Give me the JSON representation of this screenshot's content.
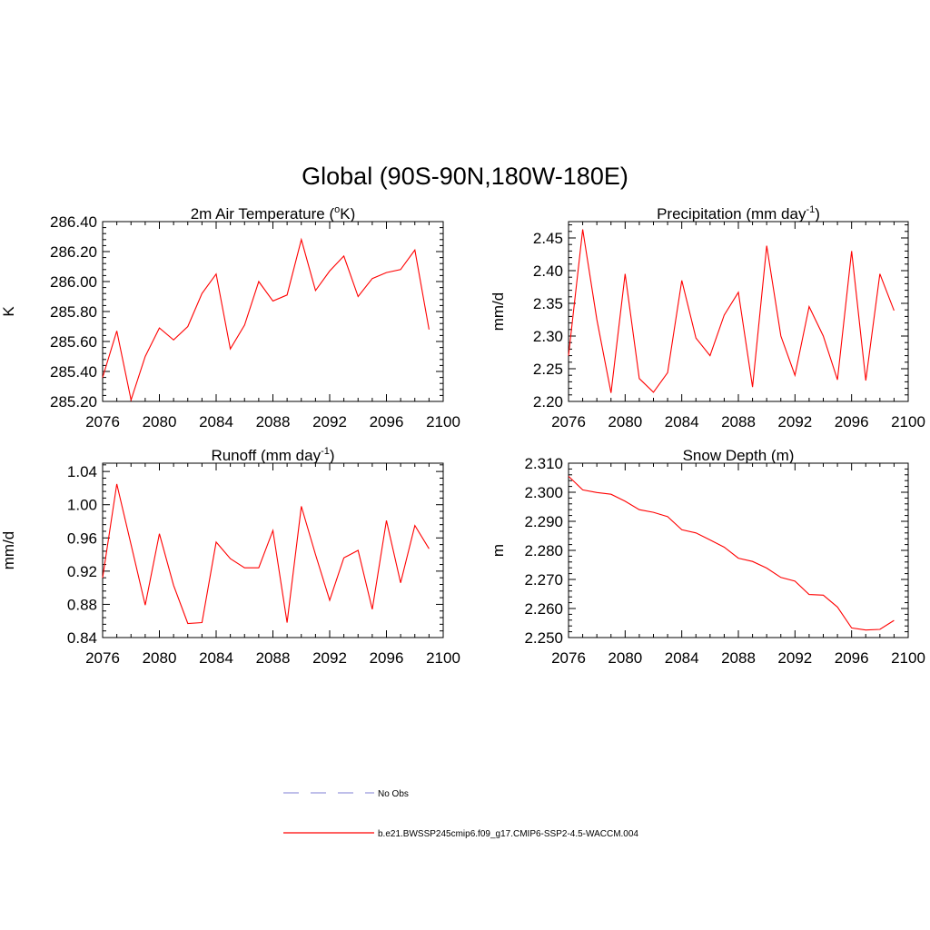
{
  "figure": {
    "title": "Global (90S-90N,180W-180E)"
  },
  "legend": {
    "items": [
      {
        "label": "No Obs",
        "style": "dashed",
        "color": "#9999dd"
      },
      {
        "label": "b.e21.BWSSP245cmip6.f09_g17.CMIP6-SSP2-4.5-WACCM.004",
        "style": "solid",
        "color": "#ff0000"
      }
    ]
  },
  "chart_data": [
    {
      "type": "line",
      "title_main": "2m Air Temperature (",
      "title_sup": "o",
      "title_tail": "K)",
      "ylabel": "K",
      "xlim": [
        2076,
        2100
      ],
      "ylim": [
        285.2,
        286.4
      ],
      "xticks": [
        "2076",
        "2080",
        "2084",
        "2088",
        "2092",
        "2096",
        "2100"
      ],
      "yticks": [
        "285.20",
        "285.40",
        "285.60",
        "285.80",
        "286.00",
        "286.20",
        "286.40"
      ],
      "series": [
        {
          "name": "b.e21.BWSSP245cmip6.f09_g17.CMIP6-SSP2-4.5-WACCM.004",
          "color": "#ff0000",
          "x": [
            2076,
            2077,
            2078,
            2079,
            2080,
            2081,
            2082,
            2083,
            2084,
            2085,
            2086,
            2087,
            2088,
            2089,
            2090,
            2091,
            2092,
            2093,
            2094,
            2095,
            2096,
            2097,
            2098,
            2099
          ],
          "y": [
            285.36,
            285.67,
            285.21,
            285.5,
            285.69,
            285.61,
            285.7,
            285.92,
            286.05,
            285.55,
            285.71,
            286.0,
            285.87,
            285.91,
            286.28,
            285.94,
            286.07,
            286.17,
            285.9,
            286.02,
            286.06,
            286.08,
            286.21,
            285.68
          ]
        }
      ]
    },
    {
      "type": "line",
      "title_main": "Precipitation (mm day",
      "title_sup": "-1",
      "title_tail": ")",
      "ylabel": "mm/d",
      "xlim": [
        2076,
        2100
      ],
      "ylim": [
        2.2,
        2.475
      ],
      "xticks": [
        "2076",
        "2080",
        "2084",
        "2088",
        "2092",
        "2096",
        "2100"
      ],
      "yticks": [
        "2.20",
        "2.25",
        "2.30",
        "2.35",
        "2.40",
        "2.45"
      ],
      "series": [
        {
          "name": "b.e21.BWSSP245cmip6.f09_g17.CMIP6-SSP2-4.5-WACCM.004",
          "color": "#ff0000",
          "x": [
            2076,
            2077,
            2078,
            2079,
            2080,
            2081,
            2082,
            2083,
            2084,
            2085,
            2086,
            2087,
            2088,
            2089,
            2090,
            2091,
            2092,
            2093,
            2094,
            2095,
            2096,
            2097,
            2098,
            2099
          ],
          "y": [
            2.27,
            2.463,
            2.325,
            2.213,
            2.395,
            2.235,
            2.214,
            2.244,
            2.385,
            2.297,
            2.27,
            2.332,
            2.367,
            2.222,
            2.438,
            2.3,
            2.24,
            2.345,
            2.3,
            2.233,
            2.43,
            2.232,
            2.395,
            2.339
          ]
        }
      ]
    },
    {
      "type": "line",
      "title_main": "Runoff (mm day",
      "title_sup": "-1",
      "title_tail": ")",
      "ylabel": "mm/d",
      "xlim": [
        2076,
        2100
      ],
      "ylim": [
        0.84,
        1.05
      ],
      "xticks": [
        "2076",
        "2080",
        "2084",
        "2088",
        "2092",
        "2096",
        "2100"
      ],
      "yticks": [
        "0.84",
        "0.88",
        "0.92",
        "0.96",
        "1.00",
        "1.04"
      ],
      "series": [
        {
          "name": "b.e21.BWSSP245cmip6.f09_g17.CMIP6-SSP2-4.5-WACCM.004",
          "color": "#ff0000",
          "x": [
            2076,
            2077,
            2078,
            2079,
            2080,
            2081,
            2082,
            2083,
            2084,
            2085,
            2086,
            2087,
            2088,
            2089,
            2090,
            2091,
            2092,
            2093,
            2094,
            2095,
            2096,
            2097,
            2098,
            2099
          ],
          "y": [
            0.912,
            1.025,
            0.952,
            0.879,
            0.965,
            0.903,
            0.857,
            0.858,
            0.955,
            0.935,
            0.924,
            0.924,
            0.969,
            0.858,
            0.998,
            0.94,
            0.885,
            0.936,
            0.945,
            0.874,
            0.981,
            0.906,
            0.975,
            0.947
          ]
        }
      ]
    },
    {
      "type": "line",
      "title_main": "Snow Depth (m)",
      "title_sup": "",
      "title_tail": "",
      "ylabel": "m",
      "xlim": [
        2076,
        2100
      ],
      "ylim": [
        2.25,
        2.31
      ],
      "xticks": [
        "2076",
        "2080",
        "2084",
        "2088",
        "2092",
        "2096",
        "2100"
      ],
      "yticks": [
        "2.250",
        "2.260",
        "2.270",
        "2.280",
        "2.290",
        "2.300",
        "2.310"
      ],
      "series": [
        {
          "name": "b.e21.BWSSP245cmip6.f09_g17.CMIP6-SSP2-4.5-WACCM.004",
          "color": "#ff0000",
          "x": [
            2076,
            2077,
            2078,
            2079,
            2080,
            2081,
            2082,
            2083,
            2084,
            2085,
            2086,
            2087,
            2088,
            2089,
            2090,
            2091,
            2092,
            2093,
            2094,
            2095,
            2096,
            2097,
            2098,
            2099
          ],
          "y": [
            2.3055,
            2.3008,
            2.2999,
            2.2993,
            2.2969,
            2.294,
            2.2931,
            2.2916,
            2.2871,
            2.286,
            2.2836,
            2.2811,
            2.2773,
            2.2762,
            2.2739,
            2.2707,
            2.2694,
            2.2648,
            2.2646,
            2.2605,
            2.2533,
            2.2526,
            2.2528,
            2.2559
          ]
        }
      ]
    }
  ]
}
